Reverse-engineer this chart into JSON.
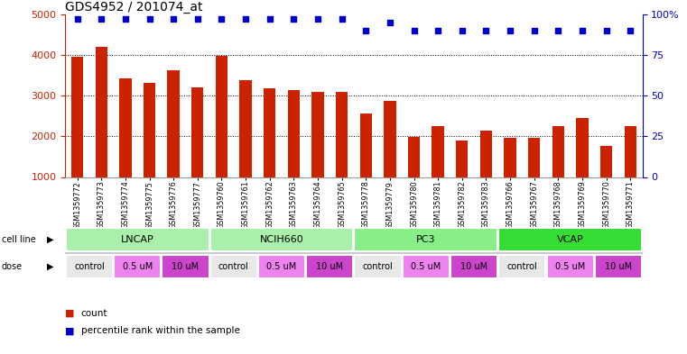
{
  "title": "GDS4952 / 201074_at",
  "samples": [
    "GSM1359772",
    "GSM1359773",
    "GSM1359774",
    "GSM1359775",
    "GSM1359776",
    "GSM1359777",
    "GSM1359760",
    "GSM1359761",
    "GSM1359762",
    "GSM1359763",
    "GSM1359764",
    "GSM1359765",
    "GSM1359778",
    "GSM1359779",
    "GSM1359780",
    "GSM1359781",
    "GSM1359782",
    "GSM1359783",
    "GSM1359766",
    "GSM1359767",
    "GSM1359768",
    "GSM1359769",
    "GSM1359770",
    "GSM1359771"
  ],
  "counts": [
    3950,
    4200,
    3420,
    3310,
    3620,
    3200,
    3980,
    3380,
    3190,
    3130,
    3100,
    3090,
    2570,
    2860,
    1990,
    2250,
    1890,
    2150,
    1960,
    1960,
    2250,
    2440,
    1760,
    2260
  ],
  "percentile_ranks": [
    97,
    97,
    97,
    97,
    97,
    97,
    97,
    97,
    97,
    97,
    97,
    97,
    90,
    95,
    90,
    90,
    90,
    90,
    90,
    90,
    90,
    90,
    90,
    90
  ],
  "cell_lines": [
    {
      "name": "LNCAP",
      "start": 0,
      "end": 6,
      "color": "#aaf0aa"
    },
    {
      "name": "NCIH660",
      "start": 6,
      "end": 12,
      "color": "#aaf0aa"
    },
    {
      "name": "PC3",
      "start": 12,
      "end": 18,
      "color": "#88ee88"
    },
    {
      "name": "VCAP",
      "start": 18,
      "end": 24,
      "color": "#33dd33"
    }
  ],
  "doses": [
    {
      "name": "control",
      "start": 0,
      "end": 2,
      "color": "#E8E8E8"
    },
    {
      "name": "0.5 uM",
      "start": 2,
      "end": 4,
      "color": "#EE82EE"
    },
    {
      "name": "10 uM",
      "start": 4,
      "end": 6,
      "color": "#CC44CC"
    },
    {
      "name": "control",
      "start": 6,
      "end": 8,
      "color": "#E8E8E8"
    },
    {
      "name": "0.5 uM",
      "start": 8,
      "end": 10,
      "color": "#EE82EE"
    },
    {
      "name": "10 uM",
      "start": 10,
      "end": 12,
      "color": "#CC44CC"
    },
    {
      "name": "control",
      "start": 12,
      "end": 14,
      "color": "#E8E8E8"
    },
    {
      "name": "0.5 uM",
      "start": 14,
      "end": 16,
      "color": "#EE82EE"
    },
    {
      "name": "10 uM",
      "start": 16,
      "end": 18,
      "color": "#CC44CC"
    },
    {
      "name": "control",
      "start": 18,
      "end": 20,
      "color": "#E8E8E8"
    },
    {
      "name": "0.5 uM",
      "start": 20,
      "end": 22,
      "color": "#EE82EE"
    },
    {
      "name": "10 uM",
      "start": 22,
      "end": 24,
      "color": "#CC44CC"
    }
  ],
  "bar_color": "#CC2200",
  "dot_color": "#0000CC",
  "ylim_left": [
    1000,
    5000
  ],
  "ylim_right": [
    0,
    100
  ],
  "yticks_left": [
    1000,
    2000,
    3000,
    4000,
    5000
  ],
  "yticks_right": [
    0,
    25,
    50,
    75,
    100
  ],
  "grid_values": [
    2000,
    3000,
    4000
  ],
  "background_color": "#ffffff",
  "title_fontsize": 10,
  "bar_width": 0.5,
  "cell_line_bg": "#C8C8C8",
  "dose_bg": "#C8C8C8"
}
